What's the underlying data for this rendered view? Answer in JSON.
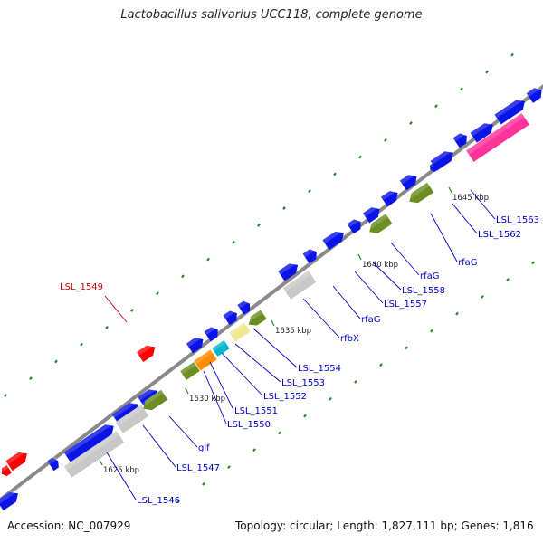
{
  "title": "Lactobacillus salivarius UCC118, complete genome",
  "accession": {
    "label": "Accession:",
    "value": "NC_007929"
  },
  "stats": {
    "topology_label": "Topology:",
    "topology": "circular",
    "length_label": "Length:",
    "length": "1,827,111 bp",
    "genes_label": "Genes:",
    "genes": "1,816"
  },
  "colors": {
    "backbone": "#8a8a8a",
    "forward_gene": "#0a14e6",
    "reverse_gene": "#6b8e23",
    "selected_gene": "#ff0000",
    "pink_gene": "#ff3399",
    "grey_gene": "#c8c8c8",
    "orange_gene": "#ff8c00",
    "cyan_gene": "#00b8cc",
    "yellow_gene": "#f0e890",
    "gc_tick": "#228b22",
    "label_text": "#0000cc",
    "selected_label_text": "#cc0000",
    "scale_text": "#222222"
  },
  "scale_labels": [
    "1625 kbp",
    "1630 kbp",
    "1635 kbp",
    "1640 kbp",
    "1645 kbp"
  ],
  "gene_labels": [
    {
      "name": "LSL_1546",
      "selected": false
    },
    {
      "name": "LSL_1547",
      "selected": false
    },
    {
      "name": "glf",
      "selected": false
    },
    {
      "name": "LSL_1549",
      "selected": true
    },
    {
      "name": "LSL_1550",
      "selected": false
    },
    {
      "name": "LSL_1551",
      "selected": false
    },
    {
      "name": "LSL_1552",
      "selected": false
    },
    {
      "name": "LSL_1553",
      "selected": false
    },
    {
      "name": "LSL_1554",
      "selected": false
    },
    {
      "name": "rfbX",
      "selected": false
    },
    {
      "name": "rfaG",
      "selected": false
    },
    {
      "name": "LSL_1557",
      "selected": false
    },
    {
      "name": "LSL_1558",
      "selected": false
    },
    {
      "name": "rfaG",
      "selected": false
    },
    {
      "name": "rfaG",
      "selected": false
    },
    {
      "name": "LSL_1562",
      "selected": false
    },
    {
      "name": "LSL_1563",
      "selected": false
    }
  ]
}
